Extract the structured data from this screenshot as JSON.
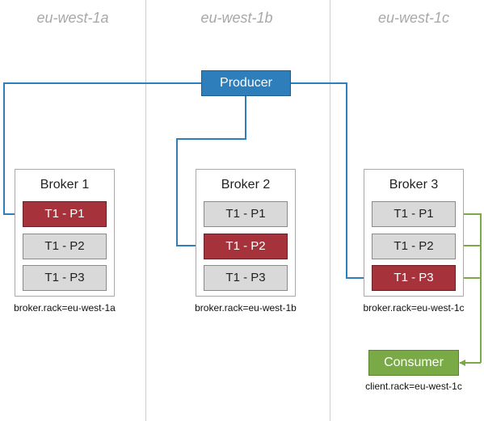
{
  "zones": [
    "eu-west-1a",
    "eu-west-1b",
    "eu-west-1c"
  ],
  "producer": "Producer",
  "consumer": "Consumer",
  "client_rack": "client.rack=eu-west-1c",
  "brokers": [
    {
      "title": "Broker 1",
      "rack": "broker.rack=eu-west-1a",
      "partitions": [
        {
          "label": "T1 - P1",
          "leader": true
        },
        {
          "label": "T1 - P2",
          "leader": false
        },
        {
          "label": "T1 - P3",
          "leader": false
        }
      ]
    },
    {
      "title": "Broker 2",
      "rack": "broker.rack=eu-west-1b",
      "partitions": [
        {
          "label": "T1 - P1",
          "leader": false
        },
        {
          "label": "T1 - P2",
          "leader": true
        },
        {
          "label": "T1 - P3",
          "leader": false
        }
      ]
    },
    {
      "title": "Broker 3",
      "rack": "broker.rack=eu-west-1c",
      "partitions": [
        {
          "label": "T1 - P1",
          "leader": false
        },
        {
          "label": "T1 - P2",
          "leader": false
        },
        {
          "label": "T1 - P3",
          "leader": true
        }
      ]
    }
  ],
  "colors": {
    "producer": "#2f7ebc",
    "consumer": "#79aa45",
    "leader": "#a6333b",
    "follower": "#d9d9d9"
  }
}
